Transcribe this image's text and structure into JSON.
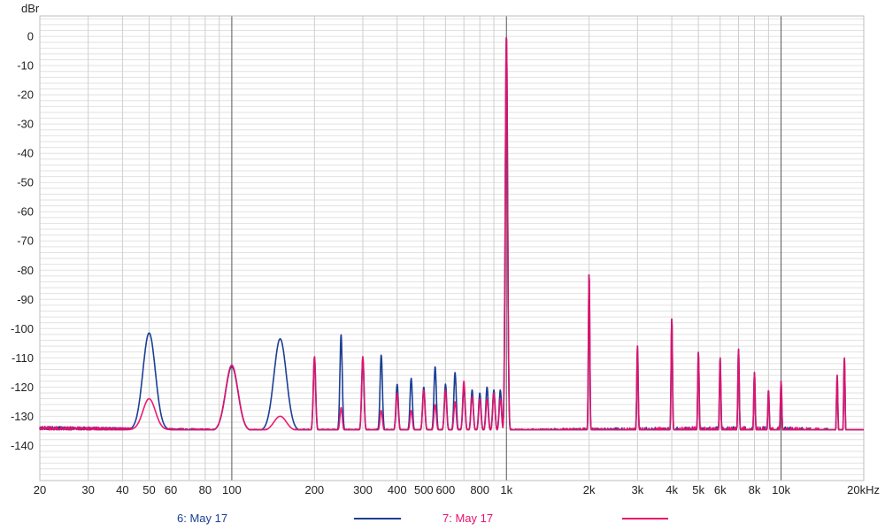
{
  "chart_data": {
    "type": "line",
    "y_unit": "dBr",
    "x_scale": "log",
    "xlim": [
      20,
      20000
    ],
    "ylim": [
      -152,
      7
    ],
    "grid": true,
    "legend_position": "bottom",
    "y_ticks": [
      0,
      -10,
      -20,
      -30,
      -40,
      -50,
      -60,
      -70,
      -80,
      -90,
      -100,
      -110,
      -120,
      -130,
      -140
    ],
    "y_tick_labels": [
      "0",
      "-10",
      "-20",
      "-30",
      "-40",
      "-50",
      "-60",
      "-70",
      "-80",
      "-90",
      "-100",
      "-110",
      "-120",
      "-130",
      "-140"
    ],
    "x_ticks": [
      20,
      30,
      40,
      50,
      60,
      80,
      100,
      200,
      300,
      400,
      500,
      600,
      800,
      1000,
      2000,
      3000,
      4000,
      5000,
      6000,
      8000,
      10000,
      20000
    ],
    "x_tick_labels": [
      "20",
      "30",
      "40",
      "50",
      "60",
      "80",
      "100",
      "200",
      "300",
      "400",
      "500",
      "600",
      "800",
      "1k",
      "2k",
      "3k",
      "4k",
      "5k",
      "6k",
      "8k",
      "10k",
      "20kHz"
    ],
    "series": [
      {
        "name": "6: May 17",
        "color": "#1c3f94",
        "noise_floor": [
          [
            20,
            -134
          ],
          [
            40,
            -134.5
          ],
          [
            100,
            -135
          ],
          [
            500,
            -135
          ],
          [
            1000,
            -135
          ],
          [
            5000,
            -135.5
          ],
          [
            10000,
            -136
          ],
          [
            15000,
            -137
          ],
          [
            20000,
            -140
          ]
        ],
        "peaks": [
          [
            50,
            -101.5
          ],
          [
            100,
            -113
          ],
          [
            150,
            -103.5
          ],
          [
            200,
            -110
          ],
          [
            250,
            -102
          ],
          [
            300,
            -110
          ],
          [
            350,
            -109
          ],
          [
            400,
            -119
          ],
          [
            450,
            -117
          ],
          [
            500,
            -120
          ],
          [
            550,
            -113
          ],
          [
            600,
            -119
          ],
          [
            650,
            -115
          ],
          [
            700,
            -120
          ],
          [
            750,
            -121
          ],
          [
            800,
            -122
          ],
          [
            850,
            -120
          ],
          [
            900,
            -121
          ],
          [
            950,
            -121
          ],
          [
            1000,
            0.5
          ],
          [
            2000,
            -81
          ],
          [
            3000,
            -106
          ],
          [
            4000,
            -96.5
          ],
          [
            5000,
            -108
          ],
          [
            6000,
            -110
          ],
          [
            7000,
            -107
          ],
          [
            8000,
            -115
          ],
          [
            9000,
            -121
          ],
          [
            10000,
            -118
          ],
          [
            16000,
            -116
          ],
          [
            17000,
            -110
          ]
        ]
      },
      {
        "name": "7: May 17",
        "color": "#e8116e",
        "noise_floor": [
          [
            20,
            -134
          ],
          [
            40,
            -134.5
          ],
          [
            100,
            -135
          ],
          [
            500,
            -135
          ],
          [
            1000,
            -135
          ],
          [
            5000,
            -135.5
          ],
          [
            10000,
            -136
          ],
          [
            15000,
            -137
          ],
          [
            20000,
            -140
          ]
        ],
        "peaks": [
          [
            50,
            -124
          ],
          [
            100,
            -112.5
          ],
          [
            150,
            -130
          ],
          [
            200,
            -109.5
          ],
          [
            250,
            -127
          ],
          [
            300,
            -109.5
          ],
          [
            350,
            -128
          ],
          [
            400,
            -122
          ],
          [
            450,
            -128
          ],
          [
            500,
            -121
          ],
          [
            550,
            -126
          ],
          [
            600,
            -121
          ],
          [
            650,
            -125
          ],
          [
            700,
            -118
          ],
          [
            750,
            -123
          ],
          [
            800,
            -124
          ],
          [
            850,
            -124
          ],
          [
            900,
            -122
          ],
          [
            950,
            -124
          ],
          [
            1000,
            0.5
          ],
          [
            2000,
            -81
          ],
          [
            3000,
            -106
          ],
          [
            4000,
            -96.5
          ],
          [
            5000,
            -108
          ],
          [
            6000,
            -110
          ],
          [
            7000,
            -107
          ],
          [
            8000,
            -115
          ],
          [
            9000,
            -121
          ],
          [
            10000,
            -118
          ],
          [
            16000,
            -116
          ],
          [
            17000,
            -110
          ]
        ]
      }
    ]
  }
}
